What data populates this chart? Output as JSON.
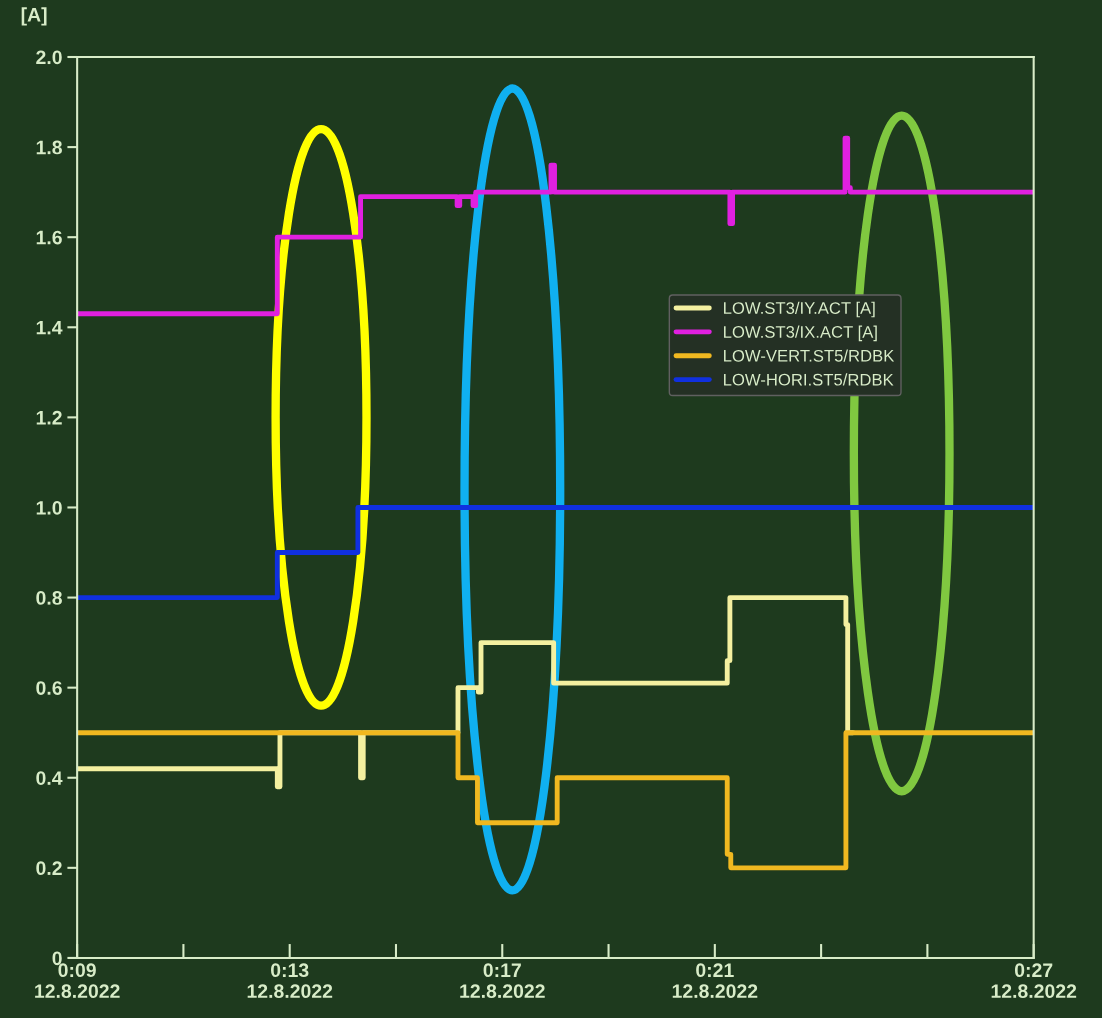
{
  "chart_data": {
    "type": "step",
    "ylabel": "[A]",
    "xlim": [
      "2022-08-12T00:09",
      "2022-08-12T00:27"
    ],
    "xticks": [
      {
        "value": "2022-08-12T00:09",
        "label": "0:09\n12.8.2022"
      },
      {
        "value": "2022-08-12T00:11",
        "label": null
      },
      {
        "value": "2022-08-12T00:13",
        "label": "0:13\n12.8.2022"
      },
      {
        "value": "2022-08-12T00:15",
        "label": null
      },
      {
        "value": "2022-08-12T00:17",
        "label": "0:17\n12.8.2022"
      },
      {
        "value": "2022-08-12T00:19",
        "label": null
      },
      {
        "value": "2022-08-12T00:21",
        "label": "0:21\n12.8.2022"
      },
      {
        "value": "2022-08-12T00:23",
        "label": null
      },
      {
        "value": "2022-08-12T00:25",
        "label": null
      },
      {
        "value": "2022-08-12T00:27",
        "label": "0:27\n12.8.2022"
      }
    ],
    "ylim": [
      0,
      2
    ],
    "yticks": [
      0,
      0.2,
      0.4,
      0.6,
      0.8,
      {
        "value": 1,
        "label": "1.0"
      },
      1.2,
      1.4,
      1.6,
      1.8,
      {
        "value": 2,
        "label": "2.0"
      }
    ],
    "legend": "right",
    "series": [
      {
        "name": "LOW.ST3/IY.ACT [A]",
        "color": "#f4f0a0",
        "x": [
          "2022-08-12T00:09:00",
          "2022-08-12T00:12:46",
          "2022-08-12T00:12:49",
          "2022-08-12T00:14:20",
          "2022-08-12T00:14:23",
          "2022-08-12T00:16:10",
          "2022-08-12T00:16:33",
          "2022-08-12T00:16:36",
          "2022-08-12T00:17:58",
          "2022-08-12T00:21:14",
          "2022-08-12T00:21:17",
          "2022-08-12T00:23:28",
          "2022-08-12T00:23:30",
          "2022-08-12T00:23:36"
        ],
        "values": [
          0.42,
          0.38,
          0.5,
          0.4,
          0.5,
          0.6,
          0.59,
          0.7,
          0.61,
          0.66,
          0.8,
          0.74,
          0.5,
          0.5
        ]
      },
      {
        "name": "LOW.ST3/IX.ACT [A]",
        "color": "#e020e0",
        "x": [
          "2022-08-12T00:09:00",
          "2022-08-12T00:12:46",
          "2022-08-12T00:14:20",
          "2022-08-12T00:16:09",
          "2022-08-12T00:16:12",
          "2022-08-12T00:16:27",
          "2022-08-12T00:16:30",
          "2022-08-12T00:17:55",
          "2022-08-12T00:17:59",
          "2022-08-12T00:21:17",
          "2022-08-12T00:21:20",
          "2022-08-12T00:23:27",
          "2022-08-12T00:23:30",
          "2022-08-12T00:23:33",
          "2022-08-12T00:27:00"
        ],
        "values": [
          1.43,
          1.6,
          1.69,
          1.67,
          1.69,
          1.67,
          1.7,
          1.76,
          1.7,
          1.63,
          1.7,
          1.82,
          1.71,
          1.7,
          1.7
        ]
      },
      {
        "name": "LOW-VERT.ST5/RDBK",
        "color": "#f0b820",
        "x": [
          "2022-08-12T00:09:00",
          "2022-08-12T00:16:10",
          "2022-08-12T00:16:32",
          "2022-08-12T00:18:02",
          "2022-08-12T00:21:14",
          "2022-08-12T00:21:18",
          "2022-08-12T00:23:28",
          "2022-08-12T00:27:00"
        ],
        "values": [
          0.5,
          0.4,
          0.3,
          0.4,
          0.23,
          0.2,
          0.5,
          0.5
        ]
      },
      {
        "name": "LOW-HORI.ST5/RDBK",
        "color": "#1030e0",
        "x": [
          "2022-08-12T00:09:00",
          "2022-08-12T00:12:38",
          "2022-08-12T00:12:46",
          "2022-08-12T00:14:17",
          "2022-08-12T00:27:00"
        ],
        "values": [
          0.8,
          null,
          0.9,
          1.0,
          1.0
        ]
      }
    ]
  }
}
